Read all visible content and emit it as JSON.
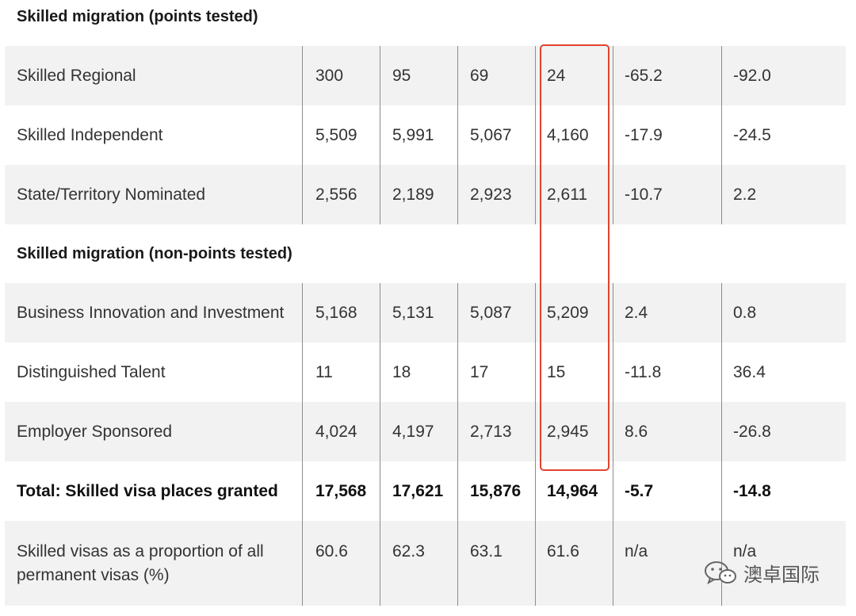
{
  "sections": {
    "points_tested": "Skilled migration (points tested)",
    "non_points_tested": "Skilled migration (non-points tested)"
  },
  "rows": [
    [
      "Skilled Regional",
      "300",
      "95",
      "69",
      "24",
      "-65.2",
      "-92.0"
    ],
    [
      "Skilled Independent",
      "5,509",
      "5,991",
      "5,067",
      "4,160",
      "-17.9",
      "-24.5"
    ],
    [
      "State/Territory Nominated",
      "2,556",
      "2,189",
      "2,923",
      "2,611",
      "-10.7",
      "2.2"
    ],
    [
      "Business Innovation and Investment",
      "5,168",
      "5,131",
      "5,087",
      "5,209",
      "2.4",
      "0.8"
    ],
    [
      "Distinguished Talent",
      "11",
      "18",
      "17",
      "15",
      "-11.8",
      "36.4"
    ],
    [
      "Employer Sponsored",
      "4,024",
      "4,197",
      "2,713",
      "2,945",
      "8.6",
      "-26.8"
    ],
    [
      "Total: Skilled visa places granted",
      "17,568",
      "17,621",
      "15,876",
      "14,964",
      "-5.7",
      "-14.8"
    ],
    [
      "Skilled visas as a proportion of all permanent visas (%)",
      "60.6",
      "62.3",
      "63.1",
      "61.6",
      "n/a",
      "n/a"
    ]
  ],
  "watermark": {
    "text": "澳卓国际",
    "icon": "wechat-icon"
  },
  "colors": {
    "highlight": "#e0432f",
    "row_shade": "#f2f2f2",
    "divider": "#8c8c8c"
  }
}
